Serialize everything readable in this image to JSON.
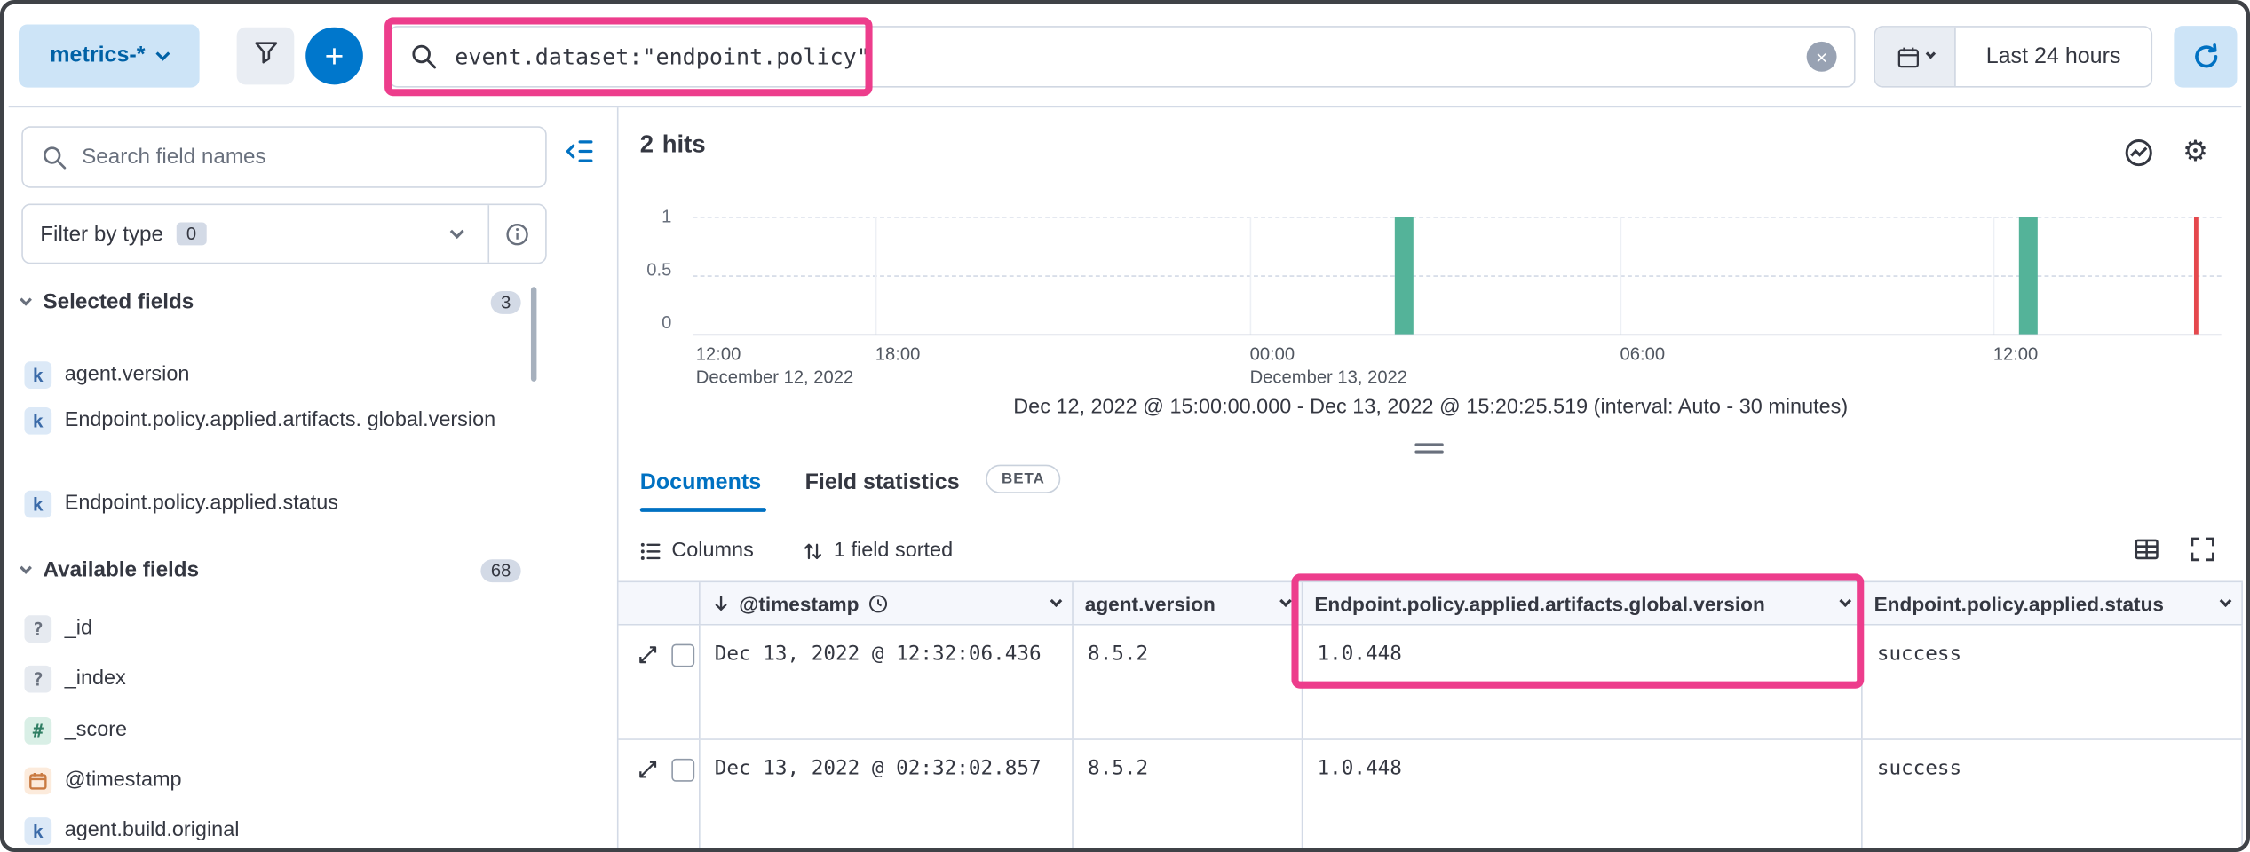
{
  "annotation": {
    "color": "#ed3d8c"
  },
  "icons": {
    "add": "+",
    "clear": "×",
    "gear": "⚙"
  },
  "top_bar": {
    "data_view_label": "metrics-*",
    "query": "event.dataset:\"endpoint.policy\"",
    "time_range_label": "Last 24 hours"
  },
  "sidebar": {
    "search_placeholder": "Search field names",
    "filter_label": "Filter by type",
    "filter_count": "0",
    "selected_label": "Selected fields",
    "selected_count": "3",
    "selected_items": [
      {
        "token": "k",
        "name": "agent.version"
      },
      {
        "token": "k",
        "name": "Endpoint.policy.applied.artifacts. global.version"
      },
      {
        "token": "k",
        "name": "Endpoint.policy.applied.status"
      }
    ],
    "available_label": "Available fields",
    "available_count": "68",
    "available_items": [
      {
        "token": "?",
        "name": "_id"
      },
      {
        "token": "?",
        "name": "_index"
      },
      {
        "token": "#",
        "name": "_score"
      },
      {
        "token": "date",
        "name": "@timestamp"
      },
      {
        "token": "k",
        "name": "agent.build.original"
      }
    ]
  },
  "main": {
    "hits_count": "2",
    "hits_label": "hits",
    "chart_caption": "Dec 12, 2022 @ 15:00:00.000 - Dec 13, 2022 @ 15:20:25.519 (interval: Auto - 30 minutes)",
    "tab_documents": "Documents",
    "tab_field_statistics": "Field statistics",
    "beta_badge": "BETA",
    "columns_label": "Columns",
    "sorted_label": "1 field sorted"
  },
  "table": {
    "headers": {
      "timestamp": "@timestamp",
      "agent_version": "agent.version",
      "global_version": "Endpoint.policy.applied.artifacts.global.version",
      "status": "Endpoint.policy.applied.status"
    },
    "rows": [
      {
        "timestamp": "Dec 13, 2022 @ 12:32:06.436",
        "agent_version": "8.5.2",
        "global_version": "1.0.448",
        "status": "success"
      },
      {
        "timestamp": "Dec 13, 2022 @ 02:32:02.857",
        "agent_version": "8.5.2",
        "global_version": "1.0.448",
        "status": "success"
      }
    ]
  },
  "chart_data": {
    "type": "bar",
    "title": "",
    "xlabel": "",
    "ylabel": "",
    "ylim": [
      0,
      1
    ],
    "y_ticks": [
      "1",
      "0.5",
      "0"
    ],
    "x_ticks": [
      {
        "time": "12:00",
        "date": "December 12, 2022"
      },
      {
        "time": "18:00",
        "date": ""
      },
      {
        "time": "00:00",
        "date": "December 13, 2022"
      },
      {
        "time": "06:00",
        "date": ""
      },
      {
        "time": "12:00",
        "date": ""
      }
    ],
    "bars": [
      {
        "x": "Dec 13, 2022 ~02:30",
        "value": 1
      },
      {
        "x": "Dec 13, 2022 ~12:30",
        "value": 1
      }
    ],
    "current_time_marker": true,
    "bar_color": "#54b399",
    "marker_color": "#e5484d",
    "grid": true,
    "legend": false
  }
}
